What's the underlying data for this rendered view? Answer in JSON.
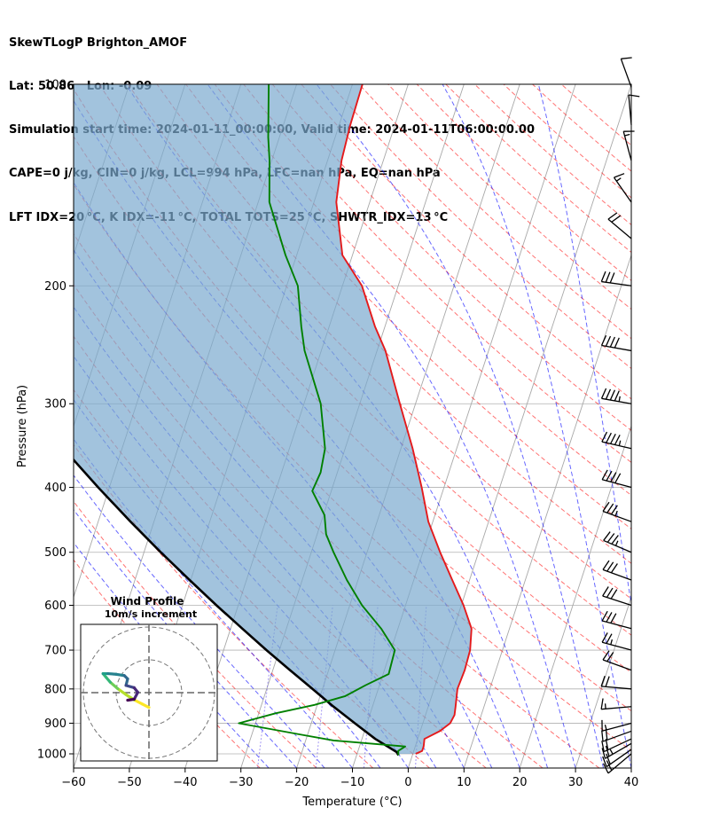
{
  "header": {
    "title_lines": [
      "SkewTLogP Brighton_AMOF",
      "Lat: 50.86   Lon: -0.09",
      "Simulation start time: 2024-01-11_00:00:00, Valid time: 2024-01-11T06:00:00.00",
      "CAPE=0 j/kg, CIN=0 j/kg, LCL=994 hPa, LFC=nan hPa, EQ=nan hPa",
      "LFT IDX=20 °C, K IDX=-11 °C, TOTAL TOTS=25 °C, SHWTR_IDX=13 °C"
    ]
  },
  "chart_data": [
    {
      "type": "line",
      "subtype": "skew-t log-p",
      "xlabel": "Temperature (°C)",
      "ylabel": "Pressure (hPa)",
      "xlim": [
        -60,
        40
      ],
      "ylim_pressure": [
        1050,
        100
      ],
      "x_ticks": [
        -60,
        -50,
        -40,
        -30,
        -20,
        -10,
        0,
        10,
        20,
        30,
        40
      ],
      "x_tick_labels": [
        "−60",
        "−50",
        "−40",
        "−30",
        "−20",
        "−10",
        "0",
        "10",
        "20",
        "30",
        "40"
      ],
      "y_ticks": [
        100,
        200,
        300,
        400,
        500,
        600,
        700,
        800,
        900,
        1000
      ],
      "y_scale": "log",
      "grid": true,
      "colors": {
        "temperature": "#e41a1c",
        "dewpoint": "#008000",
        "parcel": "#000000",
        "cin_fill": "#7aa9cf",
        "dry_adiabat": "#ff0000",
        "moist_adiabat": "#0000ff",
        "mixing_ratio": "#7b68ee",
        "isotherm": "#808080"
      },
      "series": [
        {
          "key": "temperature",
          "points": [
            [
              1000,
              0.5
            ],
            [
              990,
              1.5
            ],
            [
              975,
              1.5
            ],
            [
              950,
              1.2
            ],
            [
              925,
              3.5
            ],
            [
              900,
              4.9
            ],
            [
              875,
              5.2
            ],
            [
              850,
              4.9
            ],
            [
              800,
              4.2
            ],
            [
              750,
              4.4
            ],
            [
              700,
              4.2
            ],
            [
              650,
              3.2
            ],
            [
              600,
              0.4
            ],
            [
              550,
              -3.1
            ],
            [
              500,
              -6.9
            ],
            [
              450,
              -10.8
            ],
            [
              400,
              -14.0
            ],
            [
              350,
              -17.9
            ],
            [
              300,
              -22.8
            ],
            [
              250,
              -28.5
            ],
            [
              230,
              -31.8
            ],
            [
              200,
              -36.5
            ],
            [
              180,
              -41.8
            ],
            [
              150,
              -46.0
            ],
            [
              130,
              -47.5
            ],
            [
              115,
              -48.0
            ],
            [
              100,
              -48.2
            ]
          ]
        },
        {
          "key": "dewpoint",
          "points": [
            [
              1005,
              -2.5
            ],
            [
              990,
              -2.8
            ],
            [
              975,
              -1.8
            ],
            [
              955,
              -15.0
            ],
            [
              935,
              -21.5
            ],
            [
              900,
              -33.0
            ],
            [
              870,
              -27.0
            ],
            [
              845,
              -20.5
            ],
            [
              820,
              -15.5
            ],
            [
              790,
              -12.5
            ],
            [
              760,
              -9.0
            ],
            [
              700,
              -9.3
            ],
            [
              650,
              -13.0
            ],
            [
              600,
              -17.8
            ],
            [
              550,
              -22.0
            ],
            [
              500,
              -26.0
            ],
            [
              470,
              -28.4
            ],
            [
              440,
              -29.8
            ],
            [
              405,
              -33.4
            ],
            [
              380,
              -33.0
            ],
            [
              350,
              -33.6
            ],
            [
              300,
              -37.0
            ],
            [
              250,
              -43.0
            ],
            [
              230,
              -45.0
            ],
            [
              200,
              -48.0
            ],
            [
              180,
              -52.0
            ],
            [
              150,
              -58.0
            ],
            [
              130,
              -60.4
            ],
            [
              120,
              -62.0
            ],
            [
              100,
              -65.0
            ]
          ]
        },
        {
          "key": "parcel",
          "points": [
            [
              1005,
              -2.5
            ],
            [
              994,
              -3.0
            ],
            [
              950,
              -7.6
            ],
            [
              900,
              -12.2
            ],
            [
              850,
              -17.0
            ],
            [
              800,
              -21.8
            ],
            [
              750,
              -26.9
            ],
            [
              700,
              -32.3
            ],
            [
              650,
              -37.9
            ],
            [
              600,
              -43.9
            ],
            [
              550,
              -50.2
            ],
            [
              500,
              -57.0
            ],
            [
              450,
              -64.2
            ],
            [
              400,
              -72.0
            ],
            [
              350,
              -80.5
            ],
            [
              300,
              -89.7
            ],
            [
              250,
              -99.9
            ],
            [
              200,
              -111.5
            ],
            [
              150,
              -125.3
            ],
            [
              120,
              -135.0
            ],
            [
              100,
              -143.0
            ]
          ]
        }
      ],
      "wind_barbs": [
        {
          "p": 1000,
          "speed_kt": 22,
          "dir_deg": 230
        },
        {
          "p": 985,
          "speed_kt": 22,
          "dir_deg": 235
        },
        {
          "p": 965,
          "speed_kt": 25,
          "dir_deg": 240
        },
        {
          "p": 950,
          "speed_kt": 23,
          "dir_deg": 245
        },
        {
          "p": 925,
          "speed_kt": 22,
          "dir_deg": 250
        },
        {
          "p": 900,
          "speed_kt": 18,
          "dir_deg": 255
        },
        {
          "p": 850,
          "speed_kt": 18,
          "dir_deg": 265
        },
        {
          "p": 800,
          "speed_kt": 20,
          "dir_deg": 275
        },
        {
          "p": 750,
          "speed_kt": 20,
          "dir_deg": 290
        },
        {
          "p": 700,
          "speed_kt": 25,
          "dir_deg": 285
        },
        {
          "p": 650,
          "speed_kt": 30,
          "dir_deg": 285
        },
        {
          "p": 600,
          "speed_kt": 30,
          "dir_deg": 288
        },
        {
          "p": 550,
          "speed_kt": 30,
          "dir_deg": 290
        },
        {
          "p": 500,
          "speed_kt": 35,
          "dir_deg": 293
        },
        {
          "p": 450,
          "speed_kt": 35,
          "dir_deg": 290
        },
        {
          "p": 400,
          "speed_kt": 40,
          "dir_deg": 285
        },
        {
          "p": 350,
          "speed_kt": 45,
          "dir_deg": 283
        },
        {
          "p": 300,
          "speed_kt": 45,
          "dir_deg": 280
        },
        {
          "p": 250,
          "speed_kt": 40,
          "dir_deg": 280
        },
        {
          "p": 200,
          "speed_kt": 30,
          "dir_deg": 278
        },
        {
          "p": 170,
          "speed_kt": 20,
          "dir_deg": 310
        },
        {
          "p": 150,
          "speed_kt": 15,
          "dir_deg": 325
        },
        {
          "p": 130,
          "speed_kt": 15,
          "dir_deg": 345
        },
        {
          "p": 115,
          "speed_kt": 10,
          "dir_deg": 355
        },
        {
          "p": 101,
          "speed_kt": 12,
          "dir_deg": 340
        }
      ]
    },
    {
      "type": "line",
      "subtype": "hodograph",
      "title": "Wind Profile",
      "subtitle": "10m/s increment",
      "ring_increment_ms": 10,
      "rings": 3,
      "points": [
        [
          0.0,
          -4.5
        ],
        [
          -2.0,
          -3.5
        ],
        [
          -4.5,
          -2.2
        ],
        [
          -7.0,
          -0.6
        ],
        [
          -9.5,
          1.2
        ],
        [
          -11.8,
          3.2
        ],
        [
          -13.0,
          4.6
        ],
        [
          -14.0,
          5.8
        ],
        [
          -12.5,
          5.8
        ],
        [
          -10.0,
          5.6
        ],
        [
          -7.5,
          5.2
        ],
        [
          -6.5,
          4.2
        ],
        [
          -7.0,
          2.2
        ],
        [
          -4.5,
          1.5
        ],
        [
          -3.4,
          0.1
        ],
        [
          -4.5,
          -2.0
        ],
        [
          -6.5,
          -2.3
        ]
      ]
    }
  ]
}
